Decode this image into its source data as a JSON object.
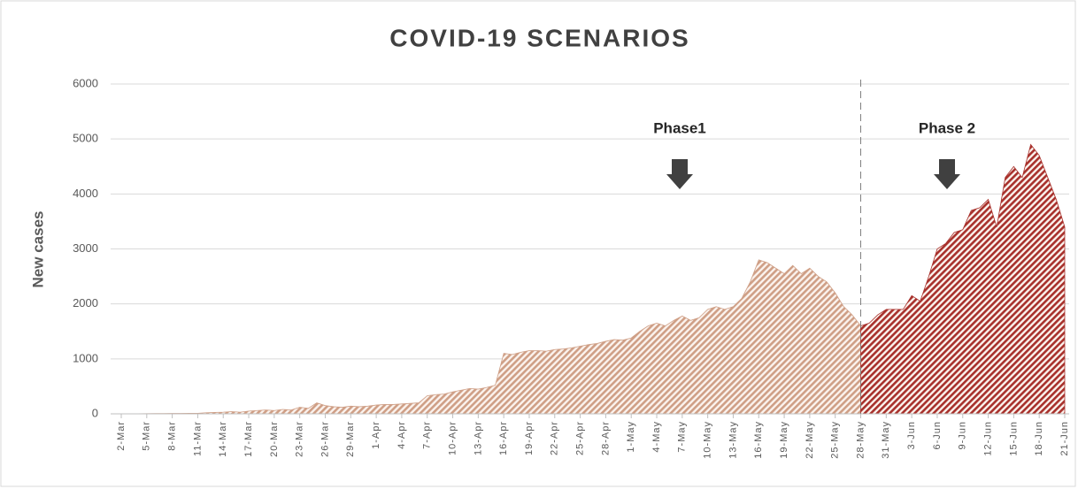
{
  "chart_data": {
    "type": "area",
    "title": "COVID-19 SCENARIOS",
    "y_label": "New cases",
    "categories": [
      "2-Mar",
      null,
      null,
      "5-Mar",
      null,
      null,
      "8-Mar",
      null,
      null,
      "11-Mar",
      null,
      null,
      "14-Mar",
      null,
      null,
      "17-Mar",
      null,
      null,
      "20-Mar",
      null,
      null,
      "23-Mar",
      null,
      null,
      "26-Mar",
      null,
      null,
      "29-Mar",
      null,
      null,
      "1-Apr",
      null,
      null,
      "4-Apr",
      null,
      null,
      "7-Apr",
      null,
      null,
      "10-Apr",
      null,
      null,
      "13-Apr",
      null,
      null,
      "16-Apr",
      null,
      null,
      "19-Apr",
      null,
      null,
      "22-Apr",
      null,
      null,
      "25-Apr",
      null,
      null,
      "28-Apr",
      null,
      null,
      "1-May",
      null,
      null,
      "4-May",
      null,
      null,
      "7-May",
      null,
      null,
      "10-May",
      null,
      null,
      "13-May",
      null,
      null,
      "16-May",
      null,
      null,
      "19-May",
      null,
      null,
      "22-May",
      null,
      null,
      "25-May",
      null,
      null,
      "28-May",
      null,
      null,
      "31-May",
      null,
      null,
      "3-Jun",
      null,
      null,
      "6-Jun",
      null,
      null,
      "9-Jun",
      null,
      null,
      "12-Jun",
      null,
      null,
      "15-Jun",
      null,
      null,
      "18-Jun",
      null,
      null,
      "21-Jun"
    ],
    "series": [
      {
        "name": "Phase1",
        "color": "#cf9f86",
        "values": [
          0,
          0,
          2,
          3,
          5,
          5,
          8,
          8,
          10,
          10,
          20,
          25,
          30,
          40,
          30,
          50,
          60,
          70,
          60,
          80,
          70,
          120,
          100,
          200,
          150,
          130,
          120,
          140,
          130,
          140,
          160,
          170,
          170,
          180,
          190,
          200,
          330,
          350,
          360,
          400,
          430,
          460,
          450,
          480,
          520,
          1100,
          1080,
          1120,
          1150,
          1150,
          1140,
          1170,
          1180,
          1200,
          1230,
          1260,
          1280,
          1320,
          1350,
          1340,
          1380,
          1500,
          1600,
          1650,
          1600,
          1700,
          1780,
          1700,
          1750,
          1900,
          1950,
          1900,
          1950,
          2100,
          2400,
          2800,
          2750,
          2650,
          2550,
          2700,
          2550,
          2650,
          2500,
          2400,
          2200,
          1950,
          1800,
          1600,
          null,
          null,
          null,
          null,
          null,
          null,
          null,
          null,
          null,
          null,
          null,
          null,
          null,
          null,
          null,
          null,
          null,
          null,
          null,
          null,
          null,
          null,
          null,
          null
        ]
      },
      {
        "name": "Phase 2",
        "color": "#a8312c",
        "values": [
          null,
          null,
          null,
          null,
          null,
          null,
          null,
          null,
          null,
          null,
          null,
          null,
          null,
          null,
          null,
          null,
          null,
          null,
          null,
          null,
          null,
          null,
          null,
          null,
          null,
          null,
          null,
          null,
          null,
          null,
          null,
          null,
          null,
          null,
          null,
          null,
          null,
          null,
          null,
          null,
          null,
          null,
          null,
          null,
          null,
          null,
          null,
          null,
          null,
          null,
          null,
          null,
          null,
          null,
          null,
          null,
          null,
          null,
          null,
          null,
          null,
          null,
          null,
          null,
          null,
          null,
          null,
          null,
          null,
          null,
          null,
          null,
          null,
          null,
          null,
          null,
          null,
          null,
          null,
          null,
          null,
          null,
          null,
          null,
          null,
          null,
          null,
          1600,
          1650,
          1800,
          1900,
          1900,
          1900,
          2150,
          2050,
          2500,
          3000,
          3100,
          3300,
          3350,
          3700,
          3750,
          3900,
          3400,
          4300,
          4500,
          4300,
          4900,
          4700,
          4300,
          3900,
          3400
        ]
      }
    ],
    "ylim": [
      0,
      6000
    ],
    "yticks": [
      0,
      1000,
      2000,
      3000,
      4000,
      5000,
      6000
    ],
    "grid": true
  }
}
